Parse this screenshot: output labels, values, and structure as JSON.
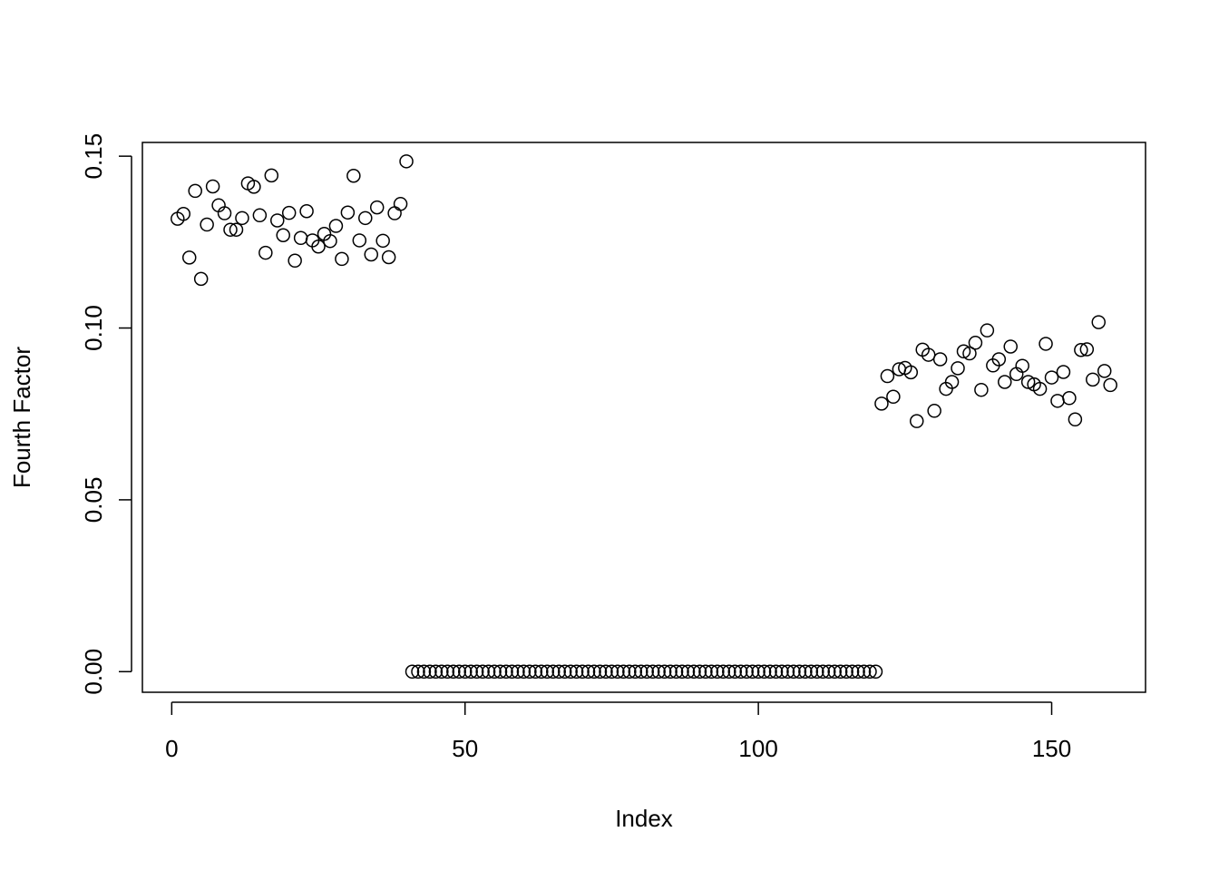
{
  "chart_data": {
    "type": "scatter",
    "title": "",
    "xlabel": "Index",
    "ylabel": "Fourth Factor",
    "xlim": [
      -5,
      166
    ],
    "ylim": [
      -0.006,
      0.154
    ],
    "xticks": [
      0,
      50,
      100,
      150
    ],
    "yticks": [
      0.0,
      0.05,
      0.1,
      0.15
    ],
    "xtick_labels": [
      "0",
      "50",
      "100",
      "150"
    ],
    "ytick_labels": [
      "0.00",
      "0.05",
      "0.10",
      "0.15"
    ],
    "grid": false,
    "series": [
      {
        "x": [
          1,
          2,
          3,
          4,
          5,
          6,
          7,
          8,
          9,
          10,
          11,
          12,
          13,
          14,
          15,
          16,
          17,
          18,
          19,
          20,
          21,
          22,
          23,
          24,
          25,
          26,
          27,
          28,
          29,
          30,
          31,
          32,
          33,
          34,
          35,
          36,
          37,
          38,
          39,
          40,
          41,
          42,
          43,
          44,
          45,
          46,
          47,
          48,
          49,
          50,
          51,
          52,
          53,
          54,
          55,
          56,
          57,
          58,
          59,
          60,
          61,
          62,
          63,
          64,
          65,
          66,
          67,
          68,
          69,
          70,
          71,
          72,
          73,
          74,
          75,
          76,
          77,
          78,
          79,
          80,
          81,
          82,
          83,
          84,
          85,
          86,
          87,
          88,
          89,
          90,
          91,
          92,
          93,
          94,
          95,
          96,
          97,
          98,
          99,
          100,
          101,
          102,
          103,
          104,
          105,
          106,
          107,
          108,
          109,
          110,
          111,
          112,
          113,
          114,
          115,
          116,
          117,
          118,
          119,
          120,
          121,
          122,
          123,
          124,
          125,
          126,
          127,
          128,
          129,
          130,
          131,
          132,
          133,
          134,
          135,
          136,
          137,
          138,
          139,
          140,
          141,
          142,
          143,
          144,
          145,
          146,
          147,
          148,
          149,
          150,
          151,
          152,
          153,
          154,
          155,
          156,
          157,
          158,
          159,
          160
        ],
        "values": [
          0.1318,
          0.1332,
          0.1205,
          0.1399,
          0.1143,
          0.1301,
          0.1412,
          0.1357,
          0.1334,
          0.1286,
          0.1286,
          0.132,
          0.1421,
          0.1411,
          0.1328,
          0.1219,
          0.1444,
          0.1313,
          0.127,
          0.1335,
          0.1196,
          0.1262,
          0.134,
          0.1255,
          0.1237,
          0.1274,
          0.1253,
          0.1297,
          0.1201,
          0.1336,
          0.1443,
          0.1255,
          0.132,
          0.1214,
          0.1351,
          0.1254,
          0.1206,
          0.1334,
          0.1361,
          0.1485,
          0,
          0,
          0,
          0,
          0,
          0,
          0,
          0,
          0,
          0,
          0,
          0,
          0,
          0,
          0,
          0,
          0,
          0,
          0,
          0,
          0,
          0,
          0,
          0,
          0,
          0,
          0,
          0,
          0,
          0,
          0,
          0,
          0,
          0,
          0,
          0,
          0,
          0,
          0,
          0,
          0,
          0,
          0,
          0,
          0,
          0,
          0,
          0,
          0,
          0,
          0,
          0,
          0,
          0,
          0,
          0,
          0,
          0,
          0,
          0,
          0,
          0,
          0,
          0,
          0,
          0,
          0,
          0,
          0,
          0,
          0,
          0,
          0,
          0,
          0,
          0,
          0,
          0,
          0,
          0,
          0.078,
          0.086,
          0.08,
          0.088,
          0.0884,
          0.0871,
          0.0729,
          0.0937,
          0.0922,
          0.0759,
          0.0909,
          0.0823,
          0.0843,
          0.0883,
          0.0932,
          0.0926,
          0.0957,
          0.082,
          0.0993,
          0.0891,
          0.0909,
          0.0843,
          0.0946,
          0.0866,
          0.089,
          0.0843,
          0.0836,
          0.0823,
          0.0954,
          0.0856,
          0.0788,
          0.0872,
          0.0796,
          0.0734,
          0.0936,
          0.0938,
          0.085,
          0.1017,
          0.0875,
          0.0834
        ]
      }
    ]
  }
}
